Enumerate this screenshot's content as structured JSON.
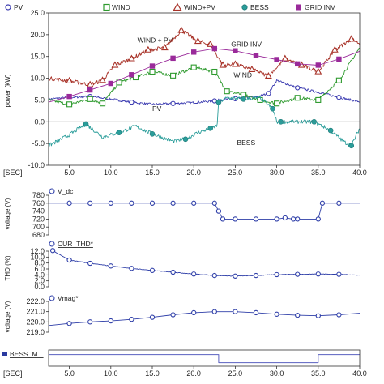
{
  "colors": {
    "pv": "#3a3ab0",
    "wind": "#2e9a2e",
    "windpv": "#a83228",
    "bess": "#2a9d9a",
    "grid": "#9a2a9a",
    "vdc": "#2e3ea8",
    "thd": "#2e3ea8",
    "vmag": "#2e3ea8",
    "bessm": "#5a60c0",
    "axis": "#333333",
    "zero": "#666666"
  },
  "chart_data": [
    {
      "type": "line",
      "id": "power",
      "ylabel": "power (kW)",
      "xlabel": "[SEC]",
      "xlim": [
        2.5,
        40.0
      ],
      "ylim": [
        -10.0,
        25.0
      ],
      "xticks": [
        "5.0",
        "10.0",
        "15.0",
        "20.0",
        "25.0",
        "30.0",
        "35.0",
        "40.0"
      ],
      "xtick_values": [
        5,
        10,
        15,
        20,
        25,
        30,
        35,
        40
      ],
      "yticks": [
        "25.0",
        "20.0",
        "15.0",
        "10.0",
        "5.0",
        "0.0",
        "-5.0",
        "-10.0"
      ],
      "ytick_values": [
        25,
        20,
        15,
        10,
        5,
        0,
        -5,
        -10
      ],
      "legend": [
        {
          "name": "PV",
          "marker": "circle-open",
          "color_key": "pv"
        },
        {
          "name": "WIND",
          "marker": "square-open",
          "color_key": "wind"
        },
        {
          "name": "WIND+PV",
          "marker": "triangle-open",
          "color_key": "windpv"
        },
        {
          "name": "BESS",
          "marker": "circle-filled",
          "color_key": "bess"
        },
        {
          "name": "GRID INV",
          "marker": "square-filled",
          "color_key": "grid"
        }
      ],
      "annotations": [
        {
          "text": "WIND + PV",
          "x": 13.2,
          "y": 18.2
        },
        {
          "text": "GRID INV",
          "x": 24.5,
          "y": 17.3
        },
        {
          "text": "WIND",
          "x": 24.8,
          "y": 10.2
        },
        {
          "text": "PV",
          "x": 15.0,
          "y": 2.5
        },
        {
          "text": "BESS",
          "x": 25.2,
          "y": -5.3
        }
      ],
      "series": [
        {
          "name": "PV",
          "color_key": "pv",
          "marker": "circle-open",
          "marker_every": 2,
          "noise": 0.25,
          "x": [
            2.5,
            5.0,
            7.5,
            10.0,
            12.5,
            15.0,
            17.5,
            20.0,
            22.5,
            23.0,
            25.0,
            27.5,
            29.0,
            30.0,
            32.5,
            35.0,
            37.5,
            40.0
          ],
          "y": [
            5.2,
            5.6,
            5.8,
            5.2,
            4.5,
            4.0,
            4.2,
            4.4,
            4.8,
            5.0,
            5.3,
            5.7,
            6.5,
            9.5,
            7.8,
            6.8,
            5.6,
            4.6
          ]
        },
        {
          "name": "WIND",
          "color_key": "wind",
          "marker": "square-open",
          "marker_every": 1,
          "noise": 0.35,
          "x": [
            2.5,
            5.0,
            7.5,
            9.0,
            11.0,
            13.0,
            15.0,
            17.5,
            20.0,
            22.5,
            24.0,
            26.0,
            28.0,
            30.0,
            32.5,
            35.0,
            37.5,
            40.0
          ],
          "y": [
            5.0,
            4.0,
            5.2,
            4.2,
            9.0,
            10.2,
            11.5,
            10.6,
            12.5,
            11.5,
            7.0,
            6.2,
            5.0,
            4.2,
            5.5,
            5.0,
            9.5,
            17.0
          ]
        },
        {
          "name": "WIND+PV",
          "color_key": "windpv",
          "marker": "triangle-open",
          "marker_every": 1,
          "noise": 0.45,
          "x": [
            2.5,
            5.0,
            7.5,
            9.0,
            10.5,
            12.5,
            14.5,
            16.5,
            18.5,
            20.5,
            22.0,
            23.5,
            25.0,
            27.0,
            29.0,
            31.0,
            33.0,
            35.0,
            37.0,
            39.0,
            40.0
          ],
          "y": [
            10.0,
            9.4,
            8.5,
            9.5,
            13.0,
            14.5,
            16.5,
            17.0,
            21.0,
            18.5,
            17.8,
            13.0,
            13.2,
            12.0,
            10.5,
            14.5,
            13.0,
            11.5,
            16.5,
            19.0,
            18.0
          ]
        },
        {
          "name": "BESS",
          "color_key": "bess",
          "marker": "circle-filled",
          "marker_every": 2,
          "noise": 0.45,
          "x": [
            2.5,
            5.0,
            7.0,
            9.0,
            11.0,
            13.0,
            15.0,
            17.5,
            19.0,
            20.5,
            22.0,
            22.8,
            23.0,
            24.0,
            26.0,
            28.0,
            29.5,
            30.0,
            30.5,
            32.5,
            34.5,
            35.0,
            36.5,
            38.0,
            39.0,
            40.0
          ],
          "y": [
            -5.5,
            -3.0,
            -0.5,
            -3.5,
            -2.5,
            -1.0,
            -2.8,
            -4.5,
            -4.0,
            -2.5,
            -1.5,
            -1.0,
            4.5,
            5.5,
            5.2,
            5.5,
            3.0,
            0.0,
            0.0,
            0.0,
            0.0,
            -0.5,
            -2.0,
            -4.5,
            -5.5,
            -1.5
          ]
        },
        {
          "name": "GRID INV",
          "color_key": "grid",
          "marker": "square-filled",
          "marker_every": 1,
          "noise": 0.0,
          "x": [
            2.5,
            5.0,
            7.5,
            10.0,
            12.5,
            15.0,
            17.5,
            20.0,
            22.5,
            25.0,
            27.5,
            30.0,
            32.5,
            35.0,
            37.5,
            40.0
          ],
          "y": [
            4.5,
            5.8,
            7.3,
            8.8,
            10.8,
            12.8,
            14.6,
            16.0,
            16.8,
            16.3,
            15.2,
            14.3,
            13.3,
            13.0,
            14.4,
            16.2
          ]
        }
      ]
    },
    {
      "type": "line",
      "id": "vdc",
      "title": "V_dc",
      "ylabel": "voltage (V)",
      "xlim": [
        2.5,
        40.0
      ],
      "ylim": [
        680,
        780
      ],
      "yticks": [
        "780",
        "760",
        "740",
        "720",
        "700",
        "680"
      ],
      "ytick_values": [
        780,
        760,
        740,
        720,
        700,
        680
      ],
      "series": [
        {
          "name": "V_dc",
          "color_key": "vdc",
          "marker": "circle-open",
          "marker_every": 1,
          "noise": 0.0,
          "x": [
            2.5,
            5.0,
            7.5,
            10.0,
            12.5,
            15.0,
            17.5,
            20.0,
            22.5,
            23.0,
            23.5,
            25.0,
            27.5,
            30.0,
            31.0,
            32.0,
            32.5,
            35.0,
            35.5,
            37.5,
            40.0
          ],
          "y": [
            760,
            760,
            760,
            760,
            760,
            760,
            760,
            760,
            760,
            740,
            720,
            720,
            720,
            720,
            723,
            720,
            720,
            720,
            760,
            760,
            760
          ]
        }
      ]
    },
    {
      "type": "line",
      "id": "thd",
      "title": "CUR_THD*",
      "ylabel": "THD (%)",
      "xlim": [
        2.5,
        40.0
      ],
      "ylim": [
        0.0,
        12.0
      ],
      "yticks": [
        "12.0",
        "10.0",
        "8.0",
        "6.0",
        "4.0",
        "2.0",
        "0.0"
      ],
      "ytick_values": [
        12,
        10,
        8,
        6,
        4,
        2,
        0
      ],
      "series": [
        {
          "name": "CUR_THD*",
          "color_key": "thd",
          "marker": "circle-open",
          "marker_every": 1,
          "noise": 0.25,
          "x": [
            3.0,
            5.0,
            7.5,
            10.0,
            12.5,
            15.0,
            17.5,
            20.0,
            22.5,
            25.0,
            27.5,
            30.0,
            32.5,
            35.0,
            37.5,
            40.0
          ],
          "y": [
            12.2,
            9.0,
            7.9,
            7.0,
            6.2,
            5.5,
            4.9,
            4.3,
            3.8,
            3.6,
            3.8,
            4.1,
            4.2,
            4.3,
            4.2,
            3.9
          ]
        }
      ]
    },
    {
      "type": "line",
      "id": "vmag",
      "title": "Vmag*",
      "ylabel": "voltage (V)",
      "xlim": [
        2.5,
        40.0
      ],
      "ylim": [
        219.0,
        222.0
      ],
      "yticks": [
        "222.0",
        "221.0",
        "220.0",
        "219.0"
      ],
      "ytick_values": [
        222,
        221,
        220,
        219
      ],
      "series": [
        {
          "name": "Vmag*",
          "color_key": "vmag",
          "marker": "circle-open",
          "marker_every": 1,
          "noise": 0.0,
          "x": [
            2.5,
            5.0,
            7.5,
            10.0,
            12.5,
            15.0,
            17.5,
            20.0,
            22.5,
            25.0,
            27.5,
            30.0,
            32.5,
            35.0,
            37.5,
            40.0
          ],
          "y": [
            219.65,
            219.85,
            220.0,
            220.1,
            220.25,
            220.45,
            220.7,
            220.9,
            221.0,
            221.0,
            220.9,
            220.75,
            220.65,
            220.6,
            220.7,
            220.85
          ]
        }
      ]
    },
    {
      "type": "line",
      "id": "bessm",
      "title": "BESS_M...",
      "xlabel": "[SEC]",
      "xlim": [
        2.5,
        40.0
      ],
      "ylim": [
        0,
        1
      ],
      "xticks": [
        "5.0",
        "10.0",
        "15.0",
        "20.0",
        "25.0",
        "30.0",
        "35.0",
        "40.0"
      ],
      "xtick_values": [
        5,
        10,
        15,
        20,
        25,
        30,
        35,
        40
      ],
      "series": [
        {
          "name": "BESS_M",
          "color_key": "bessm",
          "marker": "none",
          "step": true,
          "x": [
            2.5,
            23.0,
            23.0,
            35.0,
            35.0,
            40.0
          ],
          "y": [
            0.72,
            0.72,
            0.22,
            0.22,
            0.72,
            0.72
          ]
        }
      ]
    }
  ]
}
